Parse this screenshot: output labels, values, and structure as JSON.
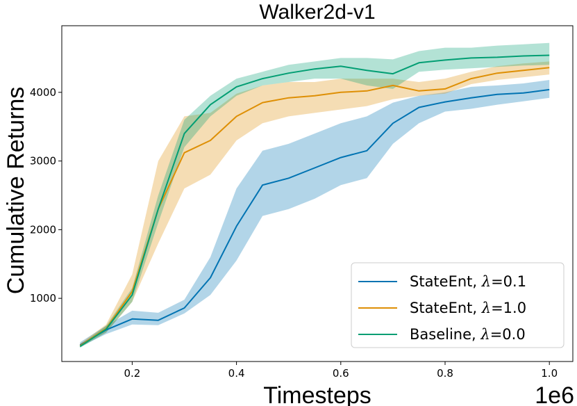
{
  "chart_data": {
    "type": "line",
    "title": "Walker2d-v1",
    "xlabel": "Timesteps",
    "ylabel": "Cumulative Returns",
    "x_offset_label": "1e6",
    "xlim": [
      0.065,
      1.045
    ],
    "ylim": [
      80,
      4970
    ],
    "xticks": [
      0.2,
      0.4,
      0.6,
      0.8,
      1.0
    ],
    "xtick_labels": [
      "0.2",
      "0.4",
      "0.6",
      "0.8",
      "1.0"
    ],
    "yticks": [
      1000,
      2000,
      3000,
      4000
    ],
    "ytick_labels": [
      "1000",
      "2000",
      "3000",
      "4000"
    ],
    "grid": false,
    "legend_position": "lower-right",
    "series": [
      {
        "name": "StateEnt, λ=0.1",
        "legend_prefix": "StateEnt, ",
        "legend_lambda": "λ",
        "legend_value": "=0.1",
        "color": "#0173b2",
        "x": [
          0.1,
          0.15,
          0.2,
          0.25,
          0.3,
          0.35,
          0.4,
          0.45,
          0.5,
          0.55,
          0.6,
          0.65,
          0.7,
          0.75,
          0.8,
          0.85,
          0.9,
          0.95,
          1.0
        ],
        "y": [
          320,
          540,
          700,
          680,
          860,
          1300,
          2050,
          2650,
          2750,
          2900,
          3050,
          3150,
          3550,
          3780,
          3860,
          3920,
          3970,
          3990,
          4040
        ],
        "lower": [
          290,
          480,
          620,
          610,
          780,
          1050,
          1550,
          2200,
          2300,
          2450,
          2650,
          2750,
          3250,
          3550,
          3720,
          3760,
          3820,
          3870,
          3920
        ],
        "upper": [
          360,
          600,
          820,
          790,
          980,
          1600,
          2600,
          3150,
          3250,
          3400,
          3550,
          3650,
          3850,
          3950,
          4000,
          4080,
          4100,
          4130,
          4180
        ]
      },
      {
        "name": "StateEnt, λ=1.0",
        "legend_prefix": "StateEnt, ",
        "legend_lambda": "λ",
        "legend_value": "=1.0",
        "color": "#de8f05",
        "x": [
          0.1,
          0.15,
          0.2,
          0.25,
          0.3,
          0.35,
          0.4,
          0.45,
          0.5,
          0.55,
          0.6,
          0.65,
          0.7,
          0.75,
          0.8,
          0.85,
          0.9,
          0.95,
          1.0
        ],
        "y": [
          310,
          560,
          1100,
          2300,
          3120,
          3300,
          3650,
          3850,
          3920,
          3950,
          4000,
          4020,
          4100,
          4020,
          4050,
          4200,
          4280,
          4320,
          4360
        ],
        "lower": [
          290,
          500,
          950,
          1800,
          2600,
          2800,
          3300,
          3550,
          3650,
          3700,
          3750,
          3800,
          3900,
          3950,
          3980,
          4120,
          4180,
          4220,
          4260
        ],
        "upper": [
          340,
          620,
          1350,
          3000,
          3650,
          3700,
          3980,
          4100,
          4150,
          4150,
          4200,
          4200,
          4200,
          4150,
          4200,
          4300,
          4380,
          4420,
          4450
        ]
      },
      {
        "name": "Baseline, λ=0.0",
        "legend_prefix": "Baseline, ",
        "legend_lambda": "λ",
        "legend_value": "=0.0",
        "color": "#029e73",
        "x": [
          0.1,
          0.15,
          0.2,
          0.25,
          0.3,
          0.35,
          0.4,
          0.45,
          0.5,
          0.55,
          0.6,
          0.65,
          0.7,
          0.75,
          0.8,
          0.85,
          0.9,
          0.95,
          1.0
        ],
        "y": [
          300,
          550,
          1050,
          2300,
          3400,
          3820,
          4080,
          4200,
          4280,
          4340,
          4380,
          4320,
          4270,
          4430,
          4470,
          4500,
          4510,
          4530,
          4540
        ],
        "lower": [
          280,
          500,
          950,
          2100,
          3200,
          3650,
          3950,
          4100,
          4150,
          4200,
          4200,
          4100,
          4050,
          4300,
          4330,
          4350,
          4370,
          4390,
          4400
        ],
        "upper": [
          320,
          600,
          1150,
          2500,
          3600,
          3950,
          4200,
          4300,
          4400,
          4450,
          4500,
          4500,
          4480,
          4600,
          4650,
          4650,
          4680,
          4700,
          4720
        ]
      }
    ]
  }
}
